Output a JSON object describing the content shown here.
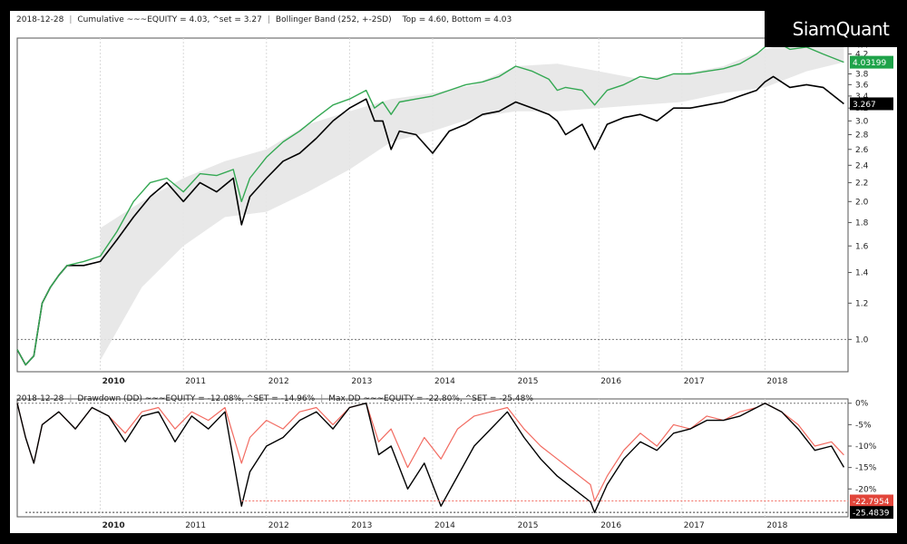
{
  "header": {
    "date": "2018-12-28",
    "cumulative_text": "Cumulative ~~~EQUITY = 4.03, ^set = 3.27",
    "bollinger_text": "Bollinger Band (252, +-2SD)",
    "topbottom_text": "Top = 4.60, Bottom = 4.03"
  },
  "header2": {
    "date": "2018-12-28",
    "drawdown_text": "Drawdown (DD) ~~~EQUITY = -12.08%, ^SET = -14.96%",
    "maxdd_text": "Max.DD ~~~EQUITY = -22.80%, ^SET = -25.48%"
  },
  "brand": "SiamQuant",
  "colors": {
    "equity": "#34a853",
    "set": "#000000",
    "band": "#e6e6e6",
    "drawdown_equity": "#f26b61",
    "badge_equity": "#1fa34a",
    "badge_dd": "#e2453a",
    "above_band": "#4a78c0",
    "below_band": "#f39a30"
  },
  "chart_data": [
    {
      "type": "line",
      "title": "Cumulative",
      "log_scale": true,
      "ylim": [
        0.85,
        4.55
      ],
      "xlim": [
        2009,
        2019
      ],
      "x_tick_labels": [
        "2010",
        "2011",
        "2012",
        "2013",
        "2014",
        "2015",
        "2016",
        "2017",
        "2018"
      ],
      "y_tick_labels": [
        "1.0",
        "1.2",
        "1.4",
        "1.6",
        "1.8",
        "2.0",
        "2.2",
        "2.4",
        "2.6",
        "2.8",
        "3.0",
        "3.2",
        "3.4",
        "3.6",
        "3.8",
        "4.2",
        "4.4"
      ],
      "last_labels": {
        "equity": "4.03199",
        "set": "3.267"
      },
      "series": [
        {
          "name": "EQUITY",
          "color": "#34a853",
          "x": [
            2009.0,
            2009.1,
            2009.2,
            2009.3,
            2009.4,
            2009.5,
            2009.6,
            2009.8,
            2010.0,
            2010.2,
            2010.4,
            2010.6,
            2010.8,
            2011.0,
            2011.2,
            2011.4,
            2011.6,
            2011.7,
            2011.8,
            2012.0,
            2012.2,
            2012.4,
            2012.6,
            2012.8,
            2013.0,
            2013.2,
            2013.3,
            2013.4,
            2013.5,
            2013.6,
            2013.8,
            2014.0,
            2014.2,
            2014.4,
            2014.6,
            2014.8,
            2015.0,
            2015.2,
            2015.4,
            2015.5,
            2015.6,
            2015.8,
            2015.95,
            2016.1,
            2016.3,
            2016.5,
            2016.7,
            2016.9,
            2017.1,
            2017.3,
            2017.5,
            2017.7,
            2017.9,
            2018.0,
            2018.1,
            2018.3,
            2018.5,
            2018.7,
            2018.95
          ],
          "values": [
            0.95,
            0.88,
            0.92,
            1.2,
            1.3,
            1.38,
            1.45,
            1.48,
            1.52,
            1.72,
            2.0,
            2.2,
            2.25,
            2.1,
            2.3,
            2.28,
            2.35,
            2.0,
            2.25,
            2.5,
            2.7,
            2.85,
            3.05,
            3.25,
            3.35,
            3.5,
            3.2,
            3.3,
            3.1,
            3.3,
            3.35,
            3.4,
            3.5,
            3.6,
            3.65,
            3.75,
            3.95,
            3.85,
            3.7,
            3.5,
            3.55,
            3.5,
            3.25,
            3.5,
            3.6,
            3.75,
            3.7,
            3.8,
            3.8,
            3.85,
            3.9,
            4.0,
            4.2,
            4.35,
            4.5,
            4.3,
            4.35,
            4.2,
            4.03
          ]
        },
        {
          "name": "SET",
          "color": "#000000",
          "x": [
            2009.0,
            2009.1,
            2009.2,
            2009.3,
            2009.4,
            2009.5,
            2009.6,
            2009.8,
            2010.0,
            2010.2,
            2010.4,
            2010.6,
            2010.8,
            2011.0,
            2011.2,
            2011.4,
            2011.6,
            2011.7,
            2011.8,
            2012.0,
            2012.2,
            2012.4,
            2012.6,
            2012.8,
            2013.0,
            2013.2,
            2013.3,
            2013.4,
            2013.5,
            2013.6,
            2013.8,
            2014.0,
            2014.2,
            2014.4,
            2014.6,
            2014.8,
            2015.0,
            2015.2,
            2015.4,
            2015.5,
            2015.6,
            2015.8,
            2015.95,
            2016.1,
            2016.3,
            2016.5,
            2016.7,
            2016.9,
            2017.1,
            2017.3,
            2017.5,
            2017.7,
            2017.9,
            2018.0,
            2018.1,
            2018.3,
            2018.5,
            2018.7,
            2018.95
          ],
          "values": [
            0.95,
            0.88,
            0.92,
            1.2,
            1.3,
            1.38,
            1.45,
            1.45,
            1.48,
            1.65,
            1.85,
            2.05,
            2.2,
            2.0,
            2.2,
            2.1,
            2.25,
            1.78,
            2.05,
            2.25,
            2.45,
            2.55,
            2.75,
            3.0,
            3.2,
            3.35,
            3.0,
            3.0,
            2.6,
            2.85,
            2.8,
            2.55,
            2.85,
            2.95,
            3.1,
            3.15,
            3.3,
            3.2,
            3.1,
            3.0,
            2.8,
            2.95,
            2.6,
            2.95,
            3.05,
            3.1,
            3.0,
            3.2,
            3.2,
            3.25,
            3.3,
            3.4,
            3.5,
            3.65,
            3.75,
            3.55,
            3.6,
            3.55,
            3.27
          ]
        },
        {
          "name": "Bollinger Top",
          "x": [
            2010.0,
            2010.5,
            2011.0,
            2011.5,
            2012.0,
            2012.5,
            2013.0,
            2013.5,
            2014.0,
            2014.5,
            2015.0,
            2015.5,
            2016.0,
            2016.5,
            2017.0,
            2017.5,
            2018.0,
            2018.5,
            2018.95
          ],
          "values": [
            1.75,
            2.0,
            2.25,
            2.45,
            2.6,
            2.95,
            3.15,
            3.35,
            3.45,
            3.6,
            3.95,
            4.0,
            3.85,
            3.7,
            3.8,
            3.95,
            4.3,
            4.55,
            4.6
          ]
        },
        {
          "name": "Bollinger Bottom",
          "x": [
            2010.0,
            2010.5,
            2011.0,
            2011.5,
            2012.0,
            2012.5,
            2013.0,
            2013.5,
            2014.0,
            2014.5,
            2015.0,
            2015.5,
            2016.0,
            2016.5,
            2017.0,
            2017.5,
            2018.0,
            2018.5,
            2018.95
          ],
          "values": [
            0.9,
            1.3,
            1.6,
            1.85,
            1.9,
            2.1,
            2.35,
            2.7,
            2.85,
            3.05,
            3.15,
            3.15,
            3.2,
            3.25,
            3.3,
            3.45,
            3.55,
            3.85,
            4.03
          ]
        }
      ]
    },
    {
      "type": "line",
      "title": "Drawdown (DD)",
      "ylim": [
        -26.5,
        1
      ],
      "xlim": [
        2009,
        2019
      ],
      "x_tick_labels": [
        "2010",
        "2011",
        "2012",
        "2013",
        "2014",
        "2015",
        "2016",
        "2017",
        "2018"
      ],
      "y_tick_labels": [
        "0%",
        "-5%",
        "-10%",
        "-15%",
        "-20%"
      ],
      "last_labels": {
        "equity": "-22.7954",
        "set": "-25.4839"
      },
      "max_dd": {
        "equity": -22.8,
        "set": -25.48
      },
      "series": [
        {
          "name": "EQUITY",
          "color": "#f26b61",
          "x": [
            2009.0,
            2009.1,
            2009.2,
            2009.3,
            2009.5,
            2009.7,
            2009.9,
            2010.1,
            2010.3,
            2010.5,
            2010.7,
            2010.9,
            2011.1,
            2011.3,
            2011.5,
            2011.7,
            2011.8,
            2012.0,
            2012.2,
            2012.4,
            2012.6,
            2012.8,
            2013.0,
            2013.2,
            2013.35,
            2013.5,
            2013.7,
            2013.9,
            2014.1,
            2014.3,
            2014.5,
            2014.7,
            2014.9,
            2015.1,
            2015.3,
            2015.5,
            2015.7,
            2015.9,
            2015.95,
            2016.1,
            2016.3,
            2016.5,
            2016.7,
            2016.9,
            2017.1,
            2017.3,
            2017.5,
            2017.7,
            2017.9,
            2018.0,
            2018.2,
            2018.4,
            2018.6,
            2018.8,
            2018.95
          ],
          "values": [
            0,
            -8,
            -14,
            -5,
            -2,
            -6,
            -1,
            -3,
            -7,
            -2,
            -1,
            -6,
            -2,
            -4,
            -1,
            -14,
            -8,
            -4,
            -6,
            -2,
            -1,
            -5,
            -1,
            0,
            -9,
            -6,
            -15,
            -8,
            -13,
            -6,
            -3,
            -2,
            -1,
            -6,
            -10,
            -13,
            -16,
            -19,
            -22.8,
            -17,
            -11,
            -7,
            -10,
            -5,
            -6,
            -3,
            -4,
            -2,
            -1,
            0,
            -2,
            -5,
            -10,
            -9,
            -12.08
          ]
        },
        {
          "name": "SET",
          "color": "#000000",
          "x": [
            2009.0,
            2009.1,
            2009.2,
            2009.3,
            2009.5,
            2009.7,
            2009.9,
            2010.1,
            2010.3,
            2010.5,
            2010.7,
            2010.9,
            2011.1,
            2011.3,
            2011.5,
            2011.7,
            2011.8,
            2012.0,
            2012.2,
            2012.4,
            2012.6,
            2012.8,
            2013.0,
            2013.2,
            2013.35,
            2013.5,
            2013.7,
            2013.9,
            2014.1,
            2014.3,
            2014.5,
            2014.7,
            2014.9,
            2015.1,
            2015.3,
            2015.5,
            2015.7,
            2015.9,
            2015.95,
            2016.1,
            2016.3,
            2016.5,
            2016.7,
            2016.9,
            2017.1,
            2017.3,
            2017.5,
            2017.7,
            2017.9,
            2018.0,
            2018.2,
            2018.4,
            2018.6,
            2018.8,
            2018.95
          ],
          "values": [
            0,
            -8,
            -14,
            -5,
            -2,
            -6,
            -1,
            -3,
            -9,
            -3,
            -2,
            -9,
            -3,
            -6,
            -2,
            -24,
            -16,
            -10,
            -8,
            -4,
            -2,
            -6,
            -1,
            0,
            -12,
            -10,
            -20,
            -14,
            -24,
            -17,
            -10,
            -6,
            -2,
            -8,
            -13,
            -17,
            -20,
            -23,
            -25.48,
            -19,
            -13,
            -9,
            -11,
            -7,
            -6,
            -4,
            -4,
            -3,
            -1,
            0,
            -2,
            -6,
            -11,
            -10,
            -14.96
          ]
        }
      ]
    }
  ]
}
